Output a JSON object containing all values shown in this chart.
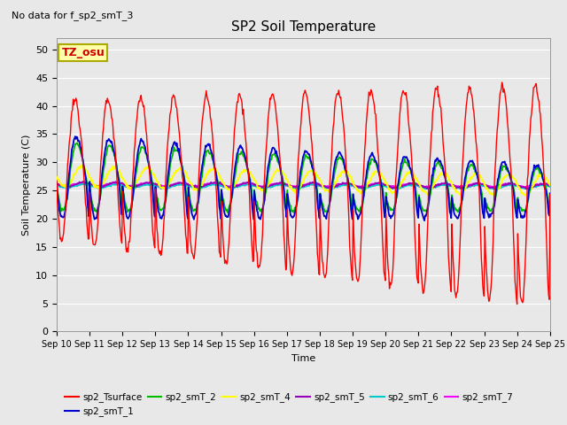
{
  "title": "SP2 Soil Temperature",
  "subtitle": "No data for f_sp2_smT_3",
  "ylabel": "Soil Temperature (C)",
  "xlabel": "Time",
  "tz_label": "TZ_osu",
  "ylim": [
    0,
    52
  ],
  "yticks": [
    0,
    5,
    10,
    15,
    20,
    25,
    30,
    35,
    40,
    45,
    50
  ],
  "bg_color": "#e8e8e8",
  "plot_bg_color": "#e8e8e8",
  "grid_color": "#ffffff",
  "series_colors": {
    "sp2_Tsurface": "#ff0000",
    "sp2_smT_1": "#0000cc",
    "sp2_smT_2": "#00bb00",
    "sp2_smT_4": "#ffff00",
    "sp2_smT_5": "#9900bb",
    "sp2_smT_6": "#00cccc",
    "sp2_smT_7": "#ff00ff"
  },
  "legend_entries": [
    {
      "label": "sp2_Tsurface",
      "color": "#ff0000"
    },
    {
      "label": "sp2_smT_1",
      "color": "#0000cc"
    },
    {
      "label": "sp2_smT_2",
      "color": "#00bb00"
    },
    {
      "label": "sp2_smT_4",
      "color": "#ffff00"
    },
    {
      "label": "sp2_smT_5",
      "color": "#9900bb"
    },
    {
      "label": "sp2_smT_6",
      "color": "#00cccc"
    },
    {
      "label": "sp2_smT_7",
      "color": "#ff00ff"
    }
  ]
}
